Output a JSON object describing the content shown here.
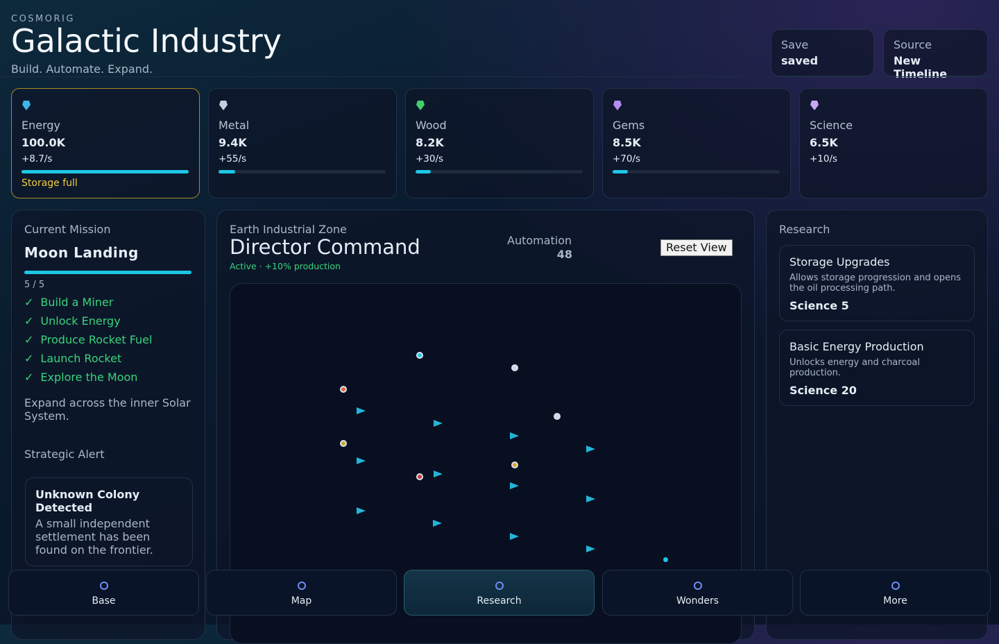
{
  "header": {
    "brand": "COSMORIG",
    "title": "Galactic Industry",
    "tagline": "Build. Automate. Expand.",
    "status": [
      {
        "label": "Save",
        "value": "saved"
      },
      {
        "label": "Source",
        "value": "New Timeline"
      }
    ]
  },
  "resources": [
    {
      "name": "Energy",
      "amount": "100.0K",
      "rate": "+8.7/s",
      "note": "Storage full"
    },
    {
      "name": "Metal",
      "amount": "9.4K",
      "rate": "+55/s"
    },
    {
      "name": "Wood",
      "amount": "8.2K",
      "rate": "+30/s"
    },
    {
      "name": "Gems",
      "amount": "8.5K",
      "rate": "+70/s"
    },
    {
      "name": "Science",
      "amount": "6.5K",
      "rate": "+10/s"
    }
  ],
  "mission": {
    "heading": "Current Mission",
    "name": "Moon Landing",
    "progress": "5 / 5",
    "objectives": [
      "Build a Miner",
      "Unlock Energy",
      "Produce Rocket Fuel",
      "Launch Rocket",
      "Explore the Moon"
    ],
    "description": "Expand across the inner Solar System.",
    "alert_heading": "Strategic Alert",
    "alert_title": "Unknown Colony Detected",
    "alert_text": "A small independent settlement has been found on the frontier."
  },
  "zone": {
    "label": "Earth Industrial Zone",
    "title": "Director Command",
    "status": "Active · +10% production",
    "automation_label": "Automation",
    "automation_value": "48",
    "reset": "Reset View"
  },
  "research": {
    "heading": "Research",
    "items": [
      {
        "name": "Storage Upgrades",
        "description": "Allows storage progression and opens the oil processing path.",
        "cost": "Science 5"
      },
      {
        "name": "Basic Energy Production",
        "description": "Unlocks energy and charcoal production.",
        "cost": "Science 20"
      }
    ]
  },
  "nav": [
    "Base",
    "Map",
    "Research",
    "Wonders",
    "More"
  ]
}
